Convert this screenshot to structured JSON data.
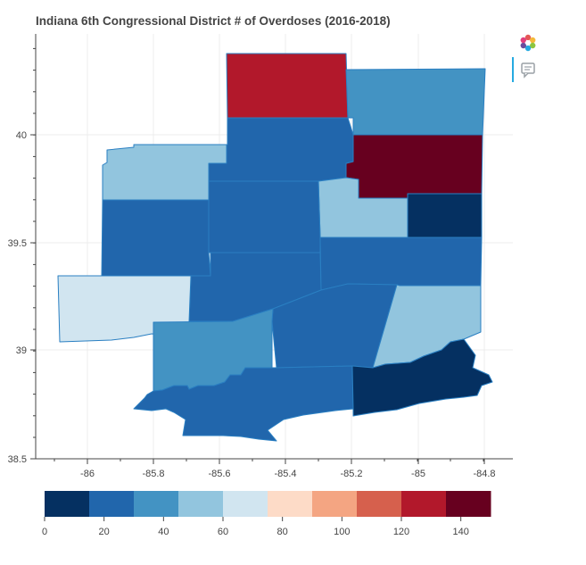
{
  "title": "Indiana 6th Congressional District # of Overdoses (2016-2018)",
  "toolbar": {
    "logo_icon": "bokeh-logo-icon",
    "hover_icon": "hover-tool-icon"
  },
  "axes": {
    "x_ticks": [
      "-86",
      "-85.8",
      "-85.6",
      "-85.4",
      "-85.2",
      "-85",
      "-84.8"
    ],
    "y_ticks": [
      "38.5",
      "39",
      "39.5",
      "40"
    ]
  },
  "colorbar": {
    "palette": [
      "#053061",
      "#2166ac",
      "#4393c3",
      "#92c5de",
      "#d1e5f0",
      "#fddbc7",
      "#f4a582",
      "#d6604d",
      "#b2182b",
      "#67001f"
    ],
    "ticks": [
      "0",
      "20",
      "40",
      "60",
      "80",
      "100",
      "120",
      "140"
    ]
  },
  "chart_data": {
    "type": "choropleth",
    "title": "Indiana 6th Congressional District # of Overdoses (2016-2018)",
    "xlim": [
      -86.25,
      -84.7
    ],
    "ylim": [
      38.5,
      40.4
    ],
    "color_range": [
      0,
      150
    ],
    "counties": [
      {
        "id": "north-top",
        "color": "#b2182b",
        "approx_value": 125
      },
      {
        "id": "northeast-top",
        "color": "#4393c3",
        "approx_value": 40
      },
      {
        "id": "east-dark-red",
        "color": "#67001f",
        "approx_value": 145
      },
      {
        "id": "north-center",
        "color": "#2166ac",
        "approx_value": 25
      },
      {
        "id": "northwest-light",
        "color": "#92c5de",
        "approx_value": 50
      },
      {
        "id": "east-light",
        "color": "#92c5de",
        "approx_value": 50
      },
      {
        "id": "east-darkest",
        "color": "#053061",
        "approx_value": 5
      },
      {
        "id": "center",
        "color": "#2166ac",
        "approx_value": 25
      },
      {
        "id": "west",
        "color": "#2166ac",
        "approx_value": 25
      },
      {
        "id": "center-south-1",
        "color": "#2166ac",
        "approx_value": 25
      },
      {
        "id": "center-east",
        "color": "#2166ac",
        "approx_value": 25
      },
      {
        "id": "west-palest",
        "color": "#d1e5f0",
        "approx_value": 65
      },
      {
        "id": "south-central",
        "color": "#2166ac",
        "approx_value": 25
      },
      {
        "id": "southeast-light",
        "color": "#92c5de",
        "approx_value": 50
      },
      {
        "id": "southwest",
        "color": "#4393c3",
        "approx_value": 40
      },
      {
        "id": "south",
        "color": "#2166ac",
        "approx_value": 25
      },
      {
        "id": "southeast-dark",
        "color": "#053061",
        "approx_value": 5
      }
    ]
  }
}
